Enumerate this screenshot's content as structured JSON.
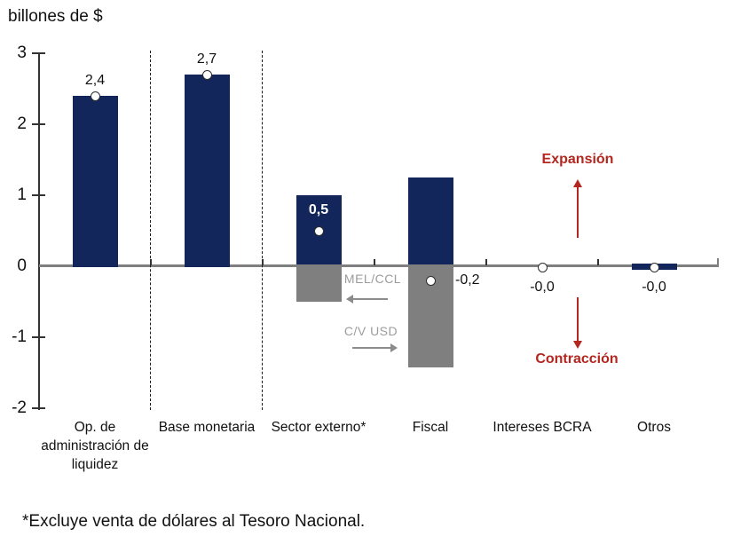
{
  "colors": {
    "navy": "#13265B",
    "bar_gray": "#7F7F7F",
    "axis_gray": "#7F7F7F",
    "red": "#B3271F",
    "annotation_gray": "#9C9C9C",
    "text": "#111111"
  },
  "footnote": "*Excluye venta de dólares al Tesoro Nacional.",
  "chart_data": {
    "type": "bar",
    "title": "billones de $",
    "ylim": [
      -2,
      3
    ],
    "grid": false,
    "legend_position": "none",
    "yticks": [
      {
        "label": "3",
        "value": 3
      },
      {
        "label": "2",
        "value": 2
      },
      {
        "label": "1",
        "value": 1
      },
      {
        "label": "0",
        "value": 0
      },
      {
        "label": "-1",
        "value": -1
      },
      {
        "label": "-2",
        "value": -2
      }
    ],
    "categories": [
      "Op. de administración de liquidez",
      "Base monetaria",
      "Sector externo*",
      "Fiscal",
      "Intereses BCRA",
      "Otros"
    ],
    "series": [
      {
        "name": "componente positivo (barra azul)",
        "color": "#13265B",
        "values": [
          2.4,
          2.7,
          1.0,
          1.25,
          0,
          -0.08
        ]
      },
      {
        "name": "componente negativo (barra gris)",
        "color": "#7F7F7F",
        "values": [
          0,
          0,
          -0.5,
          -1.43,
          0,
          0
        ]
      },
      {
        "name": "efecto neto (marcador circular)",
        "marker": "circle",
        "values": [
          2.4,
          2.7,
          0.5,
          -0.2,
          -0.02,
          -0.02
        ]
      }
    ],
    "value_labels": [
      {
        "text": "2,4",
        "placement": "above"
      },
      {
        "text": "2,7",
        "placement": "above"
      },
      {
        "text": "0,5",
        "placement": "inside"
      },
      {
        "text": "-0,2",
        "placement": "right"
      },
      {
        "text": "-0,0",
        "placement": "below"
      },
      {
        "text": "-0,0",
        "placement": "below"
      }
    ],
    "separators_after": [
      0,
      1
    ],
    "annotations": {
      "expansion": {
        "text": "Expansión",
        "arrow": "up",
        "color": "#B3271F"
      },
      "contraction": {
        "text": "Contracción",
        "arrow": "down",
        "color": "#B3271F"
      },
      "mel_ccl": {
        "text": "MEL/CCL",
        "arrow": "left",
        "color": "#9C9C9C"
      },
      "cv_usd": {
        "text": "C/V USD",
        "arrow": "right",
        "color": "#9C9C9C"
      }
    }
  }
}
